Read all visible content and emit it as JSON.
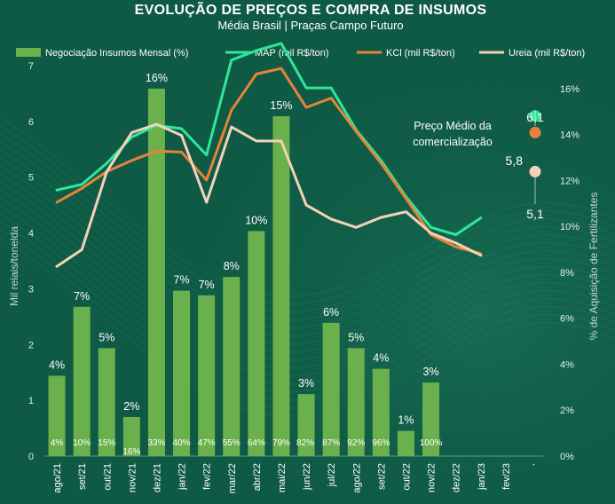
{
  "chart_data": {
    "type": "bar",
    "title": "EVOLUÇÃO DE PREÇOS E COMPRA DE INSUMOS",
    "subtitle": "Média Brasil | Praças Campo Futuro",
    "ylabel": "Mil reiais/tonelda",
    "y2label": "% de Aquisição de Fertilizantes",
    "ylim": [
      0,
      7
    ],
    "y2lim": [
      0,
      17
    ],
    "yticks": [
      "0",
      "1",
      "2",
      "3",
      "4",
      "5",
      "6",
      "7"
    ],
    "y2ticks": [
      "0%",
      "2%",
      "4%",
      "6%",
      "8%",
      "10%",
      "12%",
      "14%",
      "16%"
    ],
    "categories": [
      "ago/21",
      "set/21",
      "out/21",
      "nov/21",
      "dez/21",
      "jan/22",
      "fev/22",
      "mar/22",
      "abr/22",
      "mai/22",
      "jun/22",
      "jul/22",
      "ago/22",
      "set/22",
      "out/22",
      "nov/22",
      "dez/22",
      "jan/23",
      "fev/23",
      "."
    ],
    "legend": {
      "placement": "top",
      "items": [
        {
          "label": "Negociação Insumos Mensal (%)",
          "color": "#6ab04c",
          "kind": "bar"
        },
        {
          "label": "MAP (mil R$/ton)",
          "color": "#2ee89a",
          "kind": "line"
        },
        {
          "label": "KCl (mil R$/ton)",
          "color": "#e8823a",
          "kind": "line"
        },
        {
          "label": "Ureia (mil R$/ton)",
          "color": "#f3d3b8",
          "kind": "line"
        }
      ]
    },
    "bars": {
      "name": "Negociação Insumos Mensal (%)",
      "axis": "right",
      "color": "#6ab04c",
      "values": [
        3.5,
        6.5,
        4.7,
        1.7,
        16.0,
        7.2,
        7.0,
        7.8,
        9.8,
        14.8,
        2.7,
        5.8,
        4.7,
        3.8,
        1.1,
        3.2,
        null,
        null,
        null,
        null
      ],
      "labels": [
        "4%",
        "7%",
        "5%",
        "2%",
        "16%",
        "7%",
        "7%",
        "8%",
        "10%",
        "15%",
        "3%",
        "6%",
        "5%",
        "4%",
        "1%",
        "3%",
        "",
        "",
        "",
        ""
      ],
      "cumulative_labels": [
        "4%",
        "10%",
        "15%",
        "16%",
        "33%",
        "40%",
        "47%",
        "55%",
        "64%",
        "79%",
        "82%",
        "87%",
        "92%",
        "96%",
        "",
        "100%",
        "",
        "",
        "",
        ""
      ]
    },
    "series": [
      {
        "name": "MAP (mil R$/ton)",
        "axis": "left",
        "color": "#2ee89a",
        "values": [
          4.77,
          4.87,
          5.25,
          5.72,
          5.93,
          5.87,
          5.4,
          7.1,
          7.27,
          7.4,
          6.6,
          6.6,
          5.85,
          5.3,
          4.65,
          4.1,
          3.97,
          4.27,
          null,
          null
        ]
      },
      {
        "name": "KCl (mil R$/ton)",
        "axis": "left",
        "color": "#e8823a",
        "values": [
          4.55,
          4.8,
          5.1,
          5.3,
          5.47,
          5.45,
          4.95,
          6.2,
          6.85,
          6.95,
          6.25,
          6.42,
          5.82,
          5.25,
          4.62,
          3.97,
          3.75,
          3.63,
          null,
          null
        ]
      },
      {
        "name": "Ureia (mil R$/ton)",
        "axis": "left",
        "color": "#f3d3b8",
        "values": [
          3.4,
          3.7,
          5.1,
          5.8,
          5.95,
          5.75,
          4.55,
          5.9,
          5.65,
          5.65,
          4.5,
          4.25,
          4.1,
          4.28,
          4.38,
          4.0,
          3.82,
          3.6,
          null,
          null
        ]
      }
    ],
    "annotation": {
      "text_line1": "Preço Médio da",
      "text_line2": "comercialização",
      "points": [
        {
          "series": "MAP",
          "value": 6.1,
          "label": "6,1",
          "color": "#2ee89a"
        },
        {
          "series": "KCl",
          "value": 5.8,
          "label": "5,8",
          "color": "#e8823a"
        },
        {
          "series": "Ureia",
          "value": 5.1,
          "label": "5,1",
          "color": "#f3d3b8"
        }
      ]
    }
  }
}
